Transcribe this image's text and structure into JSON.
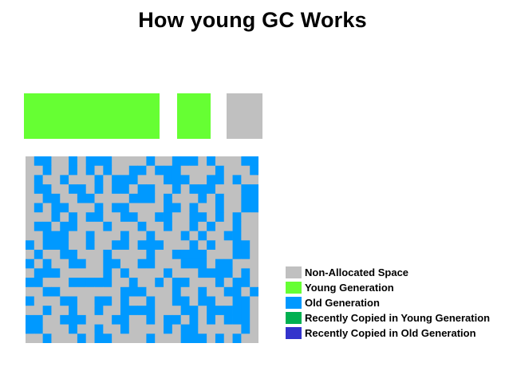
{
  "title": "How young GC Works",
  "colors": {
    "non_allocated": "#c0c0c0",
    "young": "#66ff33",
    "old": "#0099ff",
    "recently_young": "#00b050",
    "recently_old": "#3333cc"
  },
  "memory_spaces": [
    {
      "id": "eden",
      "state": "young"
    },
    {
      "id": "survivor-0",
      "state": "young"
    },
    {
      "id": "survivor-1",
      "state": "non_allocated"
    }
  ],
  "legend": [
    {
      "key": "non_allocated",
      "label": "Non-Allocated Space"
    },
    {
      "key": "young",
      "label": "Young Generation"
    },
    {
      "key": "old",
      "label": "Old Generation"
    },
    {
      "key": "recently_young",
      "label": "Recently Copied in Young Generation"
    },
    {
      "key": "recently_old",
      "label": "Recently Copied in Old Generation"
    }
  ],
  "heap_grid": {
    "legend_key": {
      ".": "non_allocated",
      "O": "old"
    },
    "rows": [
      ".OO..O.OOO....O..OOO.O...OO",
      "..O..O.O.O..OO.OOO....O...O",
      ".O..O...O.OOO...OOO..OO.O..",
      ".OO..OO.O.OO.OO..O.OOO...OO",
      "..OO..OO....OOO.O...O.O..OO",
      ".O.OO...O.OO....OO.O..O..OO",
      "...O.O.OO..OO..OO..OO.O.O..",
      ".OO.OO...O...O..O..O.O..O..",
      "..OOO..O...O..O...O.O..OO..",
      "O.OOO..O..OO.OOO...O.O..OO.",
      ".O..OO...O....O..OOOO...OO.",
      "O.O..OO..OO..OO...OOO.OO...",
      ".OOO.....O.O....O...OOOO.O.",
      "OO...OOOOO..O..O.OO...O.OO.",
      "..OO.......OOO...O..O..OO.O",
      "O...OO..OO.O..O..OO.OO..OO.",
      "..O..O..O..OOOO...OO.OOOOO.",
      "OO..OOO...OO..O.OO.O.O.OOO.",
      "OO...O..O..O....O.OO.....O.",
      "..O...O.OO....O...OOO.O.O.."
    ]
  }
}
